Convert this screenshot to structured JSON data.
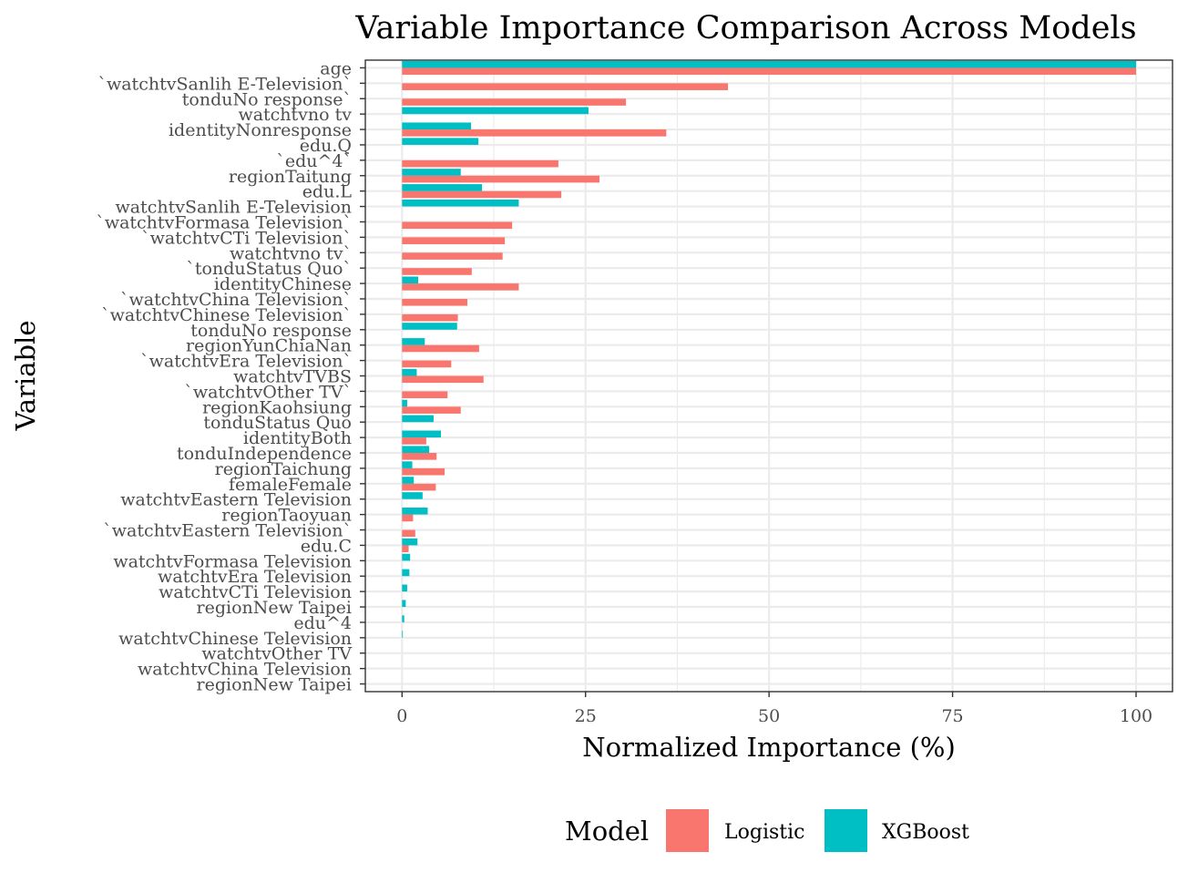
{
  "chart_data": {
    "type": "bar",
    "orientation": "horizontal",
    "title": "Variable Importance Comparison Across Models",
    "xlabel": "Normalized Importance (%)",
    "ylabel": "Variable",
    "xlim": [
      0,
      100
    ],
    "xticks": [
      0,
      25,
      50,
      75,
      100
    ],
    "grid": true,
    "legend": {
      "title": "Model",
      "position": "bottom"
    },
    "categories": [
      "age",
      "`watchtvSanlih E-Television`",
      "tonduNo response`",
      "watchtvno tv",
      "identityNonresponse",
      "edu.Q",
      "`edu^4`",
      "regionTaitung",
      "edu.L",
      "watchtvSanlih E-Television",
      "`watchtvFormasa Television`",
      "`watchtvCTi Television`",
      "watchtvno tv`",
      "`tonduStatus Quo`",
      "identityChinese",
      "`watchtvChina Television`",
      "`watchtvChinese Television`",
      "tonduNo response",
      "regionYunChiaNan",
      "`watchtvEra Television`",
      "watchtvTVBS",
      "`watchtvOther TV`",
      "regionKaohsiung",
      "tonduStatus Quo",
      "identityBoth",
      "tonduIndependence",
      "regionTaichung",
      "femaleFemale",
      "watchtvEastern Television",
      "regionTaoyuan",
      "`watchtvEastern Television`",
      "edu.C",
      "watchtvFormasa Television",
      "watchtvEra Television",
      "watchtvCTi Television",
      "regionNew Taipei",
      "edu^4",
      "watchtvChinese Television",
      "watchtvOther TV",
      "watchtvChina Television",
      "regionNew Taipei "
    ],
    "series": [
      {
        "name": "Logistic",
        "color": "#F8766D",
        "values": [
          100,
          44.4,
          30.5,
          null,
          36,
          null,
          21.3,
          26.9,
          21.7,
          null,
          15,
          14,
          13.7,
          9.5,
          15.9,
          8.9,
          7.6,
          null,
          10.5,
          6.7,
          11.1,
          6.2,
          8,
          null,
          3.3,
          4.7,
          5.8,
          4.6,
          null,
          1.5,
          1.8,
          0.9,
          null,
          null,
          null,
          null,
          null,
          null,
          null,
          null,
          null
        ]
      },
      {
        "name": "XGBoost",
        "color": "#00BFC4",
        "values": [
          100,
          null,
          null,
          25.4,
          9.4,
          10.4,
          null,
          8,
          10.9,
          15.9,
          null,
          null,
          null,
          null,
          2.2,
          null,
          null,
          7.5,
          3.1,
          null,
          2,
          null,
          0.7,
          4.3,
          5.3,
          3.7,
          1.4,
          1.6,
          2.8,
          3.5,
          null,
          2.1,
          1.1,
          1,
          0.7,
          0.5,
          0.3,
          0.1,
          0,
          0,
          0
        ]
      }
    ]
  }
}
